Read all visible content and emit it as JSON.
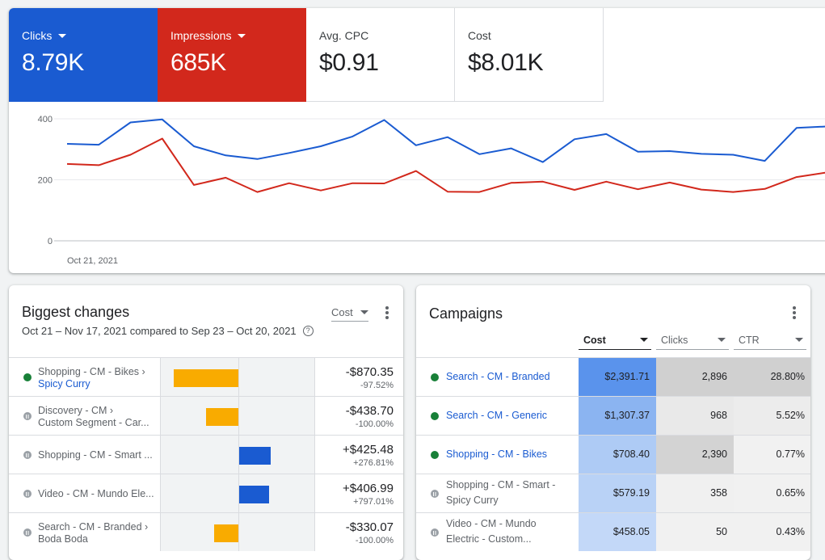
{
  "metrics": {
    "clicks": {
      "label": "Clicks",
      "value": "8.79K",
      "color": "#1a5bd1"
    },
    "impressions": {
      "label": "Impressions",
      "value": "685K",
      "color": "#d2281c"
    },
    "avg_cpc": {
      "label": "Avg. CPC",
      "value": "$0.91"
    },
    "cost": {
      "label": "Cost",
      "value": "$8.01K"
    }
  },
  "chart_data": {
    "type": "line",
    "x_start_label": "Oct 21, 2021",
    "y_ticks": [
      "400",
      "200",
      "0"
    ],
    "ylim": [
      0,
      400
    ],
    "grid": true,
    "series": [
      {
        "name": "Clicks",
        "color": "#1a5bd1",
        "values": [
          318,
          315,
          388,
          398,
          310,
          280,
          268,
          288,
          310,
          342,
          396,
          313,
          340,
          284,
          303,
          258,
          333,
          350,
          292,
          294,
          285,
          282,
          262,
          370,
          375
        ]
      },
      {
        "name": "Impressions",
        "color": "#d2281c",
        "values": [
          252,
          248,
          282,
          335,
          183,
          207,
          160,
          189,
          165,
          189,
          188,
          229,
          161,
          160,
          190,
          194,
          167,
          194,
          169,
          191,
          168,
          160,
          170,
          209,
          225
        ]
      }
    ]
  },
  "biggest_changes": {
    "title": "Biggest changes",
    "metric_selector": "Cost",
    "date_range": "Oct 21 – Nov 17, 2021 compared to Sep 23 – Oct 20, 2021",
    "help_icon": "?",
    "bar_colors": {
      "negative": "#f9ab00",
      "positive": "#1a5bd1"
    },
    "rows": [
      {
        "status": "active",
        "line1": "Shopping - CM - Bikes ›",
        "line2": "Spicy Curry",
        "line2_link": true,
        "value": "-$870.35",
        "change": "-97.52%",
        "amount": -870.35
      },
      {
        "status": "paused",
        "line1": "Discovery - CM ›",
        "line2": "Custom Segment - Car...",
        "line2_link": false,
        "value": "-$438.70",
        "change": "-100.00%",
        "amount": -438.7
      },
      {
        "status": "paused",
        "line1": "Shopping - CM - Smart ...",
        "line2": "",
        "line2_link": false,
        "value": "+$425.48",
        "change": "+276.81%",
        "amount": 425.48
      },
      {
        "status": "paused",
        "line1": "Video - CM - Mundo Ele...",
        "line2": "",
        "line2_link": false,
        "value": "+$406.99",
        "change": "+797.01%",
        "amount": 406.99
      },
      {
        "status": "paused",
        "line1": "Search - CM - Branded ›",
        "line2": "Boda Boda",
        "line2_link": false,
        "value": "-$330.07",
        "change": "-100.00%",
        "amount": -330.07
      }
    ]
  },
  "campaigns": {
    "title": "Campaigns",
    "columns": [
      "Cost",
      "Clicks",
      "CTR"
    ],
    "rows": [
      {
        "status": "active",
        "name": [
          "Search - CM - Branded"
        ],
        "link": true,
        "cost": "$2,391.71",
        "clicks": "2,896",
        "ctr": "28.80%",
        "bg": [
          "#5a93ec",
          "#d0d0d0",
          "#d0d0d0"
        ]
      },
      {
        "status": "active",
        "name": [
          "Search - CM - Generic"
        ],
        "link": true,
        "cost": "$1,307.37",
        "clicks": "968",
        "ctr": "5.52%",
        "bg": [
          "#8bb4f1",
          "#e9e9e9",
          "#ececec"
        ]
      },
      {
        "status": "active",
        "name": [
          "Shopping - CM - Bikes"
        ],
        "link": true,
        "cost": "$708.40",
        "clicks": "2,390",
        "ctr": "0.77%",
        "bg": [
          "#aecbf5",
          "#d3d3d3",
          "#f1f1f1"
        ]
      },
      {
        "status": "paused",
        "name": [
          "Shopping - CM - Smart -",
          "Spicy Curry"
        ],
        "link": false,
        "cost": "$579.19",
        "clicks": "358",
        "ctr": "0.65%",
        "bg": [
          "#b9d2f6",
          "#f0f0f0",
          "#f1f1f1"
        ]
      },
      {
        "status": "paused",
        "name": [
          "Video - CM - Mundo",
          "Electric - Custom..."
        ],
        "link": false,
        "cost": "$458.05",
        "clicks": "50",
        "ctr": "0.43%",
        "bg": [
          "#c3d8f8",
          "#f1f1f1",
          "#f1f1f1"
        ]
      }
    ]
  }
}
